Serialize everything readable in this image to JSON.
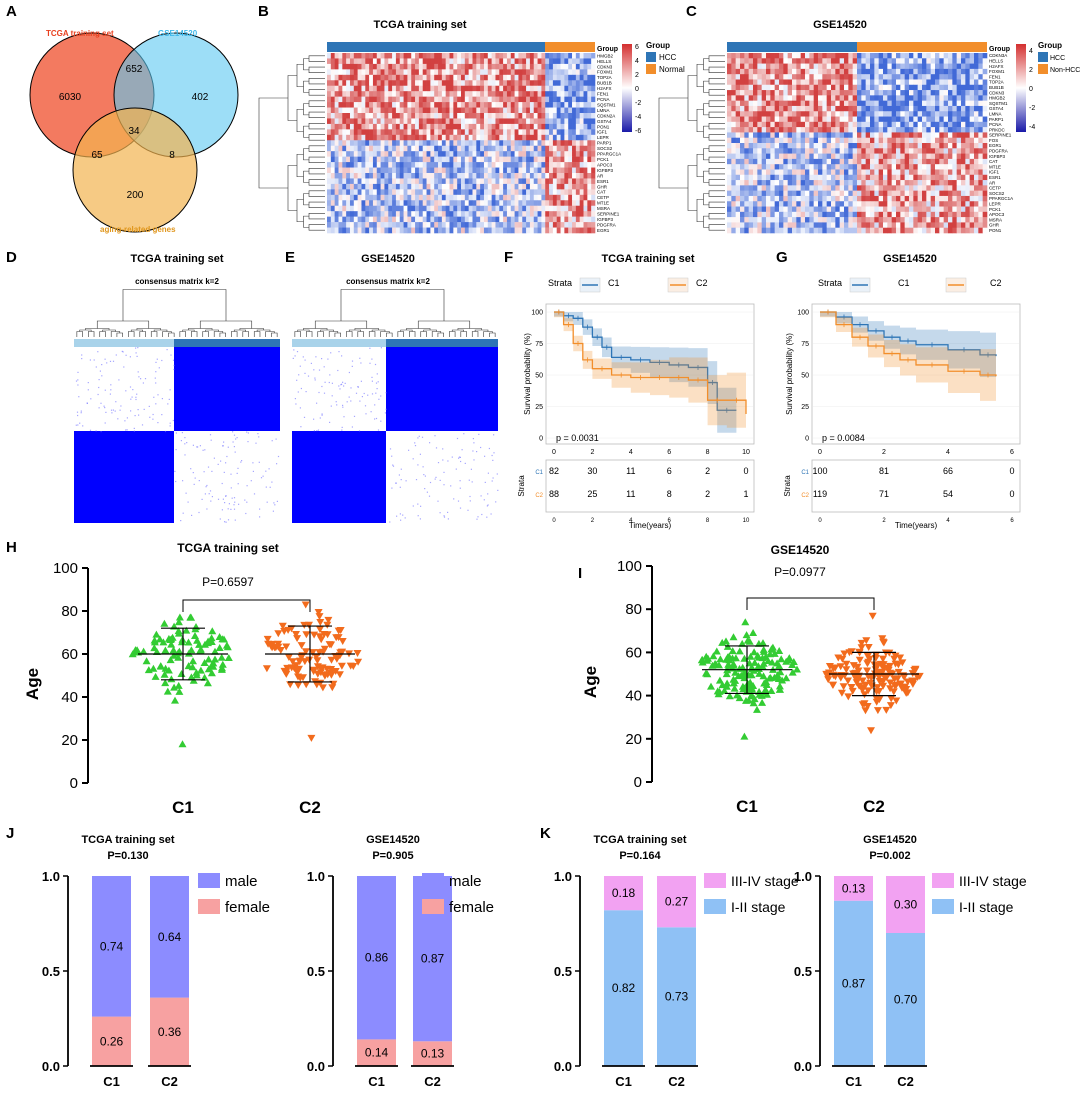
{
  "colors": {
    "hcc": "#2e75b6",
    "normal": "#f28e2b",
    "c1": "#2e75b6",
    "c2": "#f28e2b",
    "red": "#c62828",
    "green": "#33cc33",
    "orange": "#f26b1d",
    "tcga": "#f26b4f",
    "gse": "#5bc8f2",
    "aging": "#f2b450",
    "consensus": "#0000ff",
    "male": "#8c8cff",
    "female": "#f7a1a1",
    "stage34": "#f2a2f2",
    "stage12": "#8fc1f5"
  },
  "panels": {
    "A": {
      "letter": "A",
      "set_labels": [
        "TCGA training set",
        "GSE14520",
        "aging-related genes"
      ],
      "counts": {
        "tcga_only": "6030",
        "tcga_gse": "652",
        "gse_only": "402",
        "all": "34",
        "tcga_aging": "65",
        "gse_aging": "8",
        "aging_only": "200"
      }
    },
    "B": {
      "letter": "B",
      "title": "TCGA training set",
      "group_label": "Group",
      "legend_title": "Group",
      "legend": [
        "HCC",
        "Normal"
      ],
      "scale": [
        "6",
        "4",
        "2",
        "0",
        "-2",
        "-4",
        "-6"
      ],
      "genes": [
        "HMGB2",
        "HELLS",
        "CDKN3",
        "FOXM1",
        "TOP2A",
        "BUB1B",
        "H2AFX",
        "FEN1",
        "PCNA",
        "SQSTM1",
        "LMNA",
        "CDKN2A",
        "GSTA4",
        "PON1",
        "IGF1",
        "LEPR",
        "PARP1",
        "SOCS2",
        "PPARGC1A",
        "PCK1",
        "APOC3",
        "IGFBP3",
        "AR",
        "ESR1",
        "GHR",
        "CAT",
        "CETP",
        "MT1E",
        "MSRA",
        "SERPINE1",
        "IGFBP3",
        "PDGFRA",
        "EGR1"
      ]
    },
    "C": {
      "letter": "C",
      "title": "GSE14520",
      "group_label": "Group",
      "legend_title": "Group",
      "legend": [
        "HCC",
        "Non-HCC"
      ],
      "scale": [
        "4",
        "2",
        "0",
        "-2",
        "-4"
      ],
      "genes": [
        "CDKN3A",
        "HELLS",
        "H2AFX",
        "FOXM1",
        "FEN1",
        "TOP2A",
        "BUB1B",
        "CDKN3",
        "HMGB2",
        "SQSTM1",
        "GSTA4",
        "LMNA",
        "PARP1",
        "PCNA",
        "PRKDC",
        "SERPINE1",
        "FOS",
        "EGR1",
        "PDGFRA",
        "IGFBP3",
        "CAT",
        "MT1E",
        "IGF1",
        "ESR1",
        "AR",
        "CETP",
        "SOCS2",
        "PPARGC1A",
        "LEPR",
        "PCK1",
        "APOC3",
        "MSRA",
        "GHR",
        "PON1"
      ]
    },
    "D": {
      "letter": "D",
      "title": "TCGA training set",
      "subtitle": "consensus matrix k=2"
    },
    "E": {
      "letter": "E",
      "title": "GSE14520",
      "subtitle": "consensus matrix k=2"
    },
    "F": {
      "letter": "F",
      "title": "TCGA training set",
      "strata_label": "Strata",
      "legend": [
        "C1",
        "C2"
      ],
      "ylabel": "Survival probability (%)",
      "xlabel": "Time(years)",
      "pvalue": "p = 0.0031",
      "yticks": [
        "0",
        "25",
        "50",
        "75",
        "100"
      ],
      "xticks": [
        "0",
        "2",
        "4",
        "6",
        "8",
        "10"
      ],
      "risk_label": "Strata",
      "risk_rows": [
        "C1",
        "C2"
      ],
      "risk_c1": [
        "82",
        "30",
        "11",
        "6",
        "2",
        "0"
      ],
      "risk_c2": [
        "88",
        "25",
        "11",
        "8",
        "2",
        "1"
      ]
    },
    "G": {
      "letter": "G",
      "title": "GSE14520",
      "strata_label": "Strata",
      "legend": [
        "C1",
        "C2"
      ],
      "ylabel": "Survival probability (%)",
      "xlabel": "Time(years)",
      "pvalue": "p = 0.0084",
      "yticks": [
        "0",
        "25",
        "50",
        "75",
        "100"
      ],
      "xticks": [
        "0",
        "2",
        "4",
        "6"
      ],
      "risk_label": "Strata",
      "risk_rows": [
        "C1",
        "C2"
      ],
      "risk_c1": [
        "100",
        "81",
        "66",
        "0"
      ],
      "risk_c2": [
        "119",
        "71",
        "54",
        "0"
      ]
    },
    "H": {
      "letter": "H",
      "title": "TCGA training set",
      "pvalue": "P=0.6597",
      "ylabel": "Age",
      "categories": [
        "C1",
        "C2"
      ],
      "yticks": [
        "0",
        "20",
        "40",
        "60",
        "80",
        "100"
      ]
    },
    "I": {
      "letter": "I",
      "title": "GSE14520",
      "pvalue": "P=0.0977",
      "ylabel": "Age",
      "categories": [
        "C1",
        "C2"
      ],
      "yticks": [
        "0",
        "20",
        "40",
        "60",
        "80",
        "100"
      ]
    },
    "J": {
      "letter": "J"
    },
    "K": {
      "letter": "K"
    }
  },
  "chart_data": [
    {
      "panel": "F",
      "type": "line",
      "title": "TCGA training set",
      "xlabel": "Time(years)",
      "ylabel": "Survival probability (%)",
      "xlim": [
        0,
        10
      ],
      "ylim": [
        0,
        100
      ],
      "series": [
        {
          "name": "C1",
          "x": [
            0,
            0.5,
            1,
            1.5,
            2,
            2.5,
            3,
            4,
            5,
            6,
            7,
            8,
            8.5,
            9.5
          ],
          "y": [
            100,
            97,
            95,
            88,
            80,
            72,
            64,
            62,
            60,
            58,
            56,
            44,
            22,
            22
          ]
        },
        {
          "name": "C2",
          "x": [
            0,
            0.5,
            1,
            1.5,
            2,
            3,
            4,
            5,
            6,
            7,
            8,
            9,
            10
          ],
          "y": [
            100,
            90,
            75,
            62,
            55,
            50,
            48,
            48,
            48,
            46,
            30,
            30,
            19
          ]
        }
      ],
      "annotation": "p = 0.0031"
    },
    {
      "panel": "G",
      "type": "line",
      "title": "GSE14520",
      "xlabel": "Time(years)",
      "ylabel": "Survival probability (%)",
      "xlim": [
        0,
        6
      ],
      "ylim": [
        0,
        100
      ],
      "series": [
        {
          "name": "C1",
          "x": [
            0,
            0.5,
            1,
            1.5,
            2,
            2.5,
            3,
            4,
            5,
            5.5
          ],
          "y": [
            100,
            96,
            90,
            85,
            80,
            77,
            74,
            70,
            66,
            65
          ]
        },
        {
          "name": "C2",
          "x": [
            0,
            0.5,
            1,
            1.5,
            2,
            2.5,
            3,
            4,
            5,
            5.5
          ],
          "y": [
            100,
            90,
            80,
            73,
            67,
            62,
            58,
            53,
            50,
            49
          ]
        }
      ],
      "annotation": "p = 0.0084"
    },
    {
      "panel": "H",
      "type": "scatter",
      "title": "TCGA training set",
      "ylabel": "Age",
      "ylim": [
        0,
        100
      ],
      "categories": [
        "C1",
        "C2"
      ],
      "median": [
        60,
        60
      ],
      "sd": [
        12,
        13
      ],
      "n": [
        100,
        110
      ],
      "range": [
        [
          18,
          77
        ],
        [
          21,
          83
        ]
      ],
      "pvalue": "P=0.6597"
    },
    {
      "panel": "I",
      "type": "scatter",
      "title": "GSE14520",
      "ylabel": "Age",
      "ylim": [
        0,
        100
      ],
      "categories": [
        "C1",
        "C2"
      ],
      "median": [
        52,
        50
      ],
      "sd": [
        11,
        10
      ],
      "n": [
        150,
        150
      ],
      "range": [
        [
          21,
          74
        ],
        [
          24,
          77
        ]
      ],
      "pvalue": "P=0.0977"
    },
    {
      "panel": "J",
      "type": "bar",
      "title": "TCGA training set",
      "subtitle": "P=0.130",
      "categories": [
        "C1",
        "C2"
      ],
      "ylim": [
        0,
        1
      ],
      "yticks": [
        "0.0",
        "0.5",
        "1.0"
      ],
      "series": [
        {
          "name": "female",
          "values": [
            0.26,
            0.36
          ],
          "labels": [
            "0.26",
            "0.36"
          ]
        },
        {
          "name": "male",
          "values": [
            0.74,
            0.64
          ],
          "labels": [
            "0.74",
            "0.64"
          ]
        }
      ],
      "legend": [
        "male",
        "female"
      ]
    },
    {
      "panel": "J",
      "type": "bar",
      "title": "GSE14520",
      "subtitle": "P=0.905",
      "categories": [
        "C1",
        "C2"
      ],
      "ylim": [
        0,
        1
      ],
      "yticks": [
        "0.0",
        "0.5",
        "1.0"
      ],
      "series": [
        {
          "name": "female",
          "values": [
            0.14,
            0.13
          ],
          "labels": [
            "0.14",
            "0.13"
          ]
        },
        {
          "name": "male",
          "values": [
            0.86,
            0.87
          ],
          "labels": [
            "0.86",
            "0.87"
          ]
        }
      ],
      "legend": [
        "male",
        "female"
      ]
    },
    {
      "panel": "K",
      "type": "bar",
      "title": "TCGA training set",
      "subtitle": "P=0.164",
      "categories": [
        "C1",
        "C2"
      ],
      "ylim": [
        0,
        1
      ],
      "yticks": [
        "0.0",
        "0.5",
        "1.0"
      ],
      "series": [
        {
          "name": "I-II stage",
          "values": [
            0.82,
            0.73
          ],
          "labels": [
            "0.82",
            "0.73"
          ]
        },
        {
          "name": "III-IV stage",
          "values": [
            0.18,
            0.27
          ],
          "labels": [
            "0.18",
            "0.27"
          ]
        }
      ],
      "legend": [
        "III-IV stage",
        "I-II stage"
      ]
    },
    {
      "panel": "K",
      "type": "bar",
      "title": "GSE14520",
      "subtitle": "P=0.002",
      "categories": [
        "C1",
        "C2"
      ],
      "ylim": [
        0,
        1
      ],
      "yticks": [
        "0.0",
        "0.5",
        "1.0"
      ],
      "series": [
        {
          "name": "I-II stage",
          "values": [
            0.87,
            0.7
          ],
          "labels": [
            "0.87",
            "0.70"
          ]
        },
        {
          "name": "III-IV stage",
          "values": [
            0.13,
            0.3
          ],
          "labels": [
            "0.13",
            "0.30"
          ]
        }
      ],
      "legend": [
        "III-IV stage",
        "I-II stage"
      ]
    }
  ]
}
